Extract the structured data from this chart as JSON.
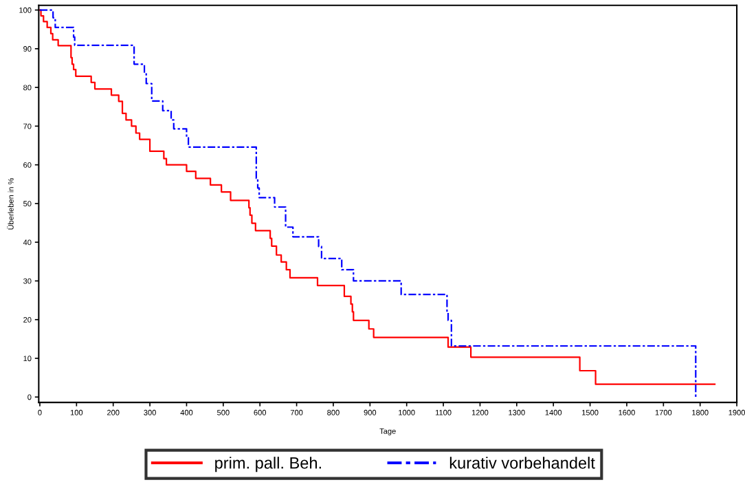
{
  "chart_data": {
    "type": "step",
    "xlabel": "Tage",
    "ylabel": "Überleben in %",
    "xlim": [
      -3,
      1900
    ],
    "xticks": [
      0,
      100,
      200,
      300,
      400,
      500,
      600,
      700,
      800,
      900,
      1000,
      1100,
      1200,
      1300,
      1400,
      1500,
      1600,
      1700,
      1800,
      1900
    ],
    "ylim": [
      -1.4,
      101.2
    ],
    "yticks": [
      0,
      10,
      20,
      30,
      40,
      50,
      60,
      70,
      80,
      90,
      100
    ],
    "grid": false,
    "legend": "bottom",
    "marker": "none",
    "series": [
      {
        "name": "prim. pall. Beh.",
        "color": "#ff0000",
        "line_style": "solid",
        "x": [
          0,
          3,
          10,
          20,
          30,
          35,
          50,
          85,
          88,
          92,
          98,
          140,
          150,
          195,
          215,
          225,
          235,
          250,
          262,
          272,
          300,
          338,
          345,
          400,
          425,
          465,
          495,
          520,
          570,
          573,
          578,
          588,
          628,
          632,
          645,
          658,
          672,
          678,
          682,
          757,
          830,
          848,
          852,
          855,
          858,
          897,
          910,
          1113,
          1175,
          1472,
          1515,
          1840
        ],
        "values": [
          100,
          98.5,
          97,
          95.5,
          93.9,
          92.3,
          90.8,
          87.7,
          86,
          84.6,
          82.9,
          81.3,
          79.6,
          78,
          76.4,
          73.3,
          71.6,
          70,
          68.2,
          66.6,
          63.5,
          61.6,
          60,
          58.3,
          56.5,
          54.8,
          53,
          50.8,
          48.9,
          47,
          44.9,
          43,
          41,
          39,
          36.7,
          34.9,
          32.9,
          32.9,
          30.8,
          28.8,
          26,
          24,
          22,
          19.8,
          19.8,
          17.6,
          15.4,
          12.9,
          10.3,
          6.8,
          3.3,
          3.3
        ]
      },
      {
        "name": "kurativ vorbehandelt",
        "color": "#0000ff",
        "line_style": "dashdot",
        "x": [
          0,
          36,
          42,
          92,
          95,
          257,
          285,
          290,
          305,
          335,
          358,
          365,
          400,
          405,
          590,
          594,
          598,
          600,
          640,
          670,
          690,
          760,
          768,
          823,
          855,
          985,
          1110,
          1113,
          1122,
          1788
        ],
        "values": [
          100,
          98,
          95.5,
          93,
          90.9,
          86,
          83.7,
          81,
          76.5,
          74,
          71.6,
          69.3,
          67,
          64.6,
          56.5,
          54,
          51.5,
          51.5,
          49.1,
          43.9,
          41.4,
          38.9,
          35.8,
          32.9,
          30,
          26.5,
          22,
          19.8,
          13.2,
          0
        ]
      }
    ]
  }
}
